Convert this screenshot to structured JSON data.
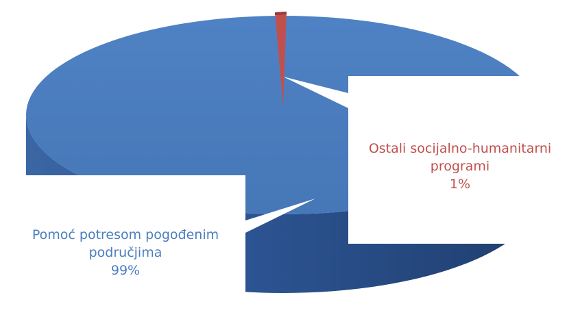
{
  "chart_data": {
    "type": "pie",
    "style": "3d",
    "slices": [
      {
        "label": "Pomoć potresom pogođenim područjima",
        "label_lines": [
          "Pomoć potresom pogođenim",
          "područjima"
        ],
        "percent_label": "99%",
        "value": 99,
        "color": "#4a7dbe"
      },
      {
        "label": "Ostali socijalno-humanitarni programi",
        "label_lines": [
          "Ostali socijalno-humanitarni",
          "programi"
        ],
        "percent_label": "1%",
        "value": 1,
        "color": "#c0504d"
      }
    ]
  },
  "colors": {
    "blue_label": "#4a7dbe",
    "red_label": "#c0504d"
  }
}
